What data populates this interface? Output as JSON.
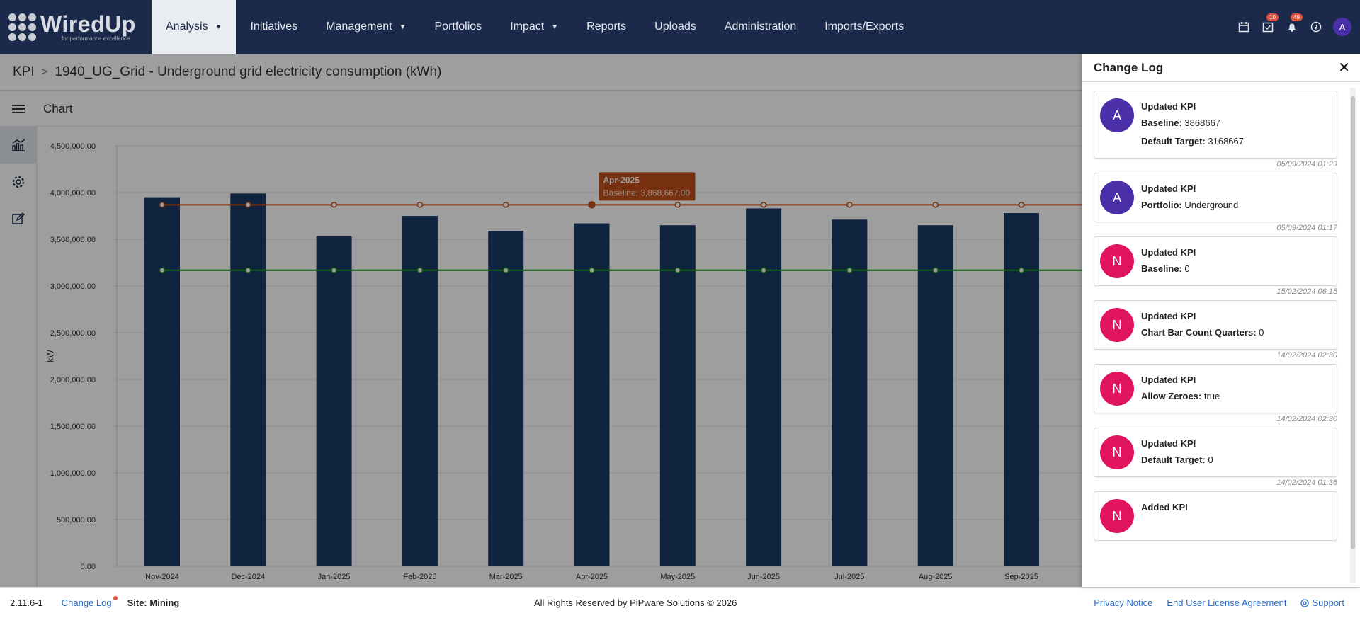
{
  "app": {
    "logo_text": "WiredUp",
    "logo_tagline": "for performance excellence"
  },
  "nav": {
    "items": [
      {
        "label": "Analysis",
        "has_caret": true,
        "active": true
      },
      {
        "label": "Initiatives"
      },
      {
        "label": "Management",
        "has_caret": true
      },
      {
        "label": "Portfolios"
      },
      {
        "label": "Impact",
        "has_caret": true
      },
      {
        "label": "Reports"
      },
      {
        "label": "Uploads"
      },
      {
        "label": "Administration"
      },
      {
        "label": "Imports/Exports"
      }
    ],
    "caret": "▼"
  },
  "top_icons": {
    "calendar": "calendar-icon",
    "tasks_badge": "10",
    "notifications_badge": "49",
    "help": "help-icon",
    "avatar_initial": "A"
  },
  "breadcrumb": {
    "root": "KPI",
    "separator": ">",
    "current": "1940_UG_Grid - Underground grid electricity consumption (kWh)"
  },
  "subheader": {
    "title": "Chart"
  },
  "chart_data": {
    "type": "bar",
    "categories": [
      "Nov-2024",
      "Dec-2024",
      "Jan-2025",
      "Feb-2025",
      "Mar-2025",
      "Apr-2025",
      "May-2025",
      "Jun-2025",
      "Jul-2025",
      "Aug-2025",
      "Sep-2025"
    ],
    "values": [
      3950000,
      3990000,
      3530000,
      3750000,
      3590000,
      3670000,
      3650000,
      3830000,
      3710000,
      3650000,
      3780000
    ],
    "series": [
      {
        "name": "Baseline",
        "type": "line",
        "values": [
          3868667,
          3868667,
          3868667,
          3868667,
          3868667,
          3868667,
          3868667,
          3868667,
          3868667,
          3868667,
          3868667
        ],
        "color": "#c0501a"
      },
      {
        "type": "line",
        "values": [
          3168667,
          3168667,
          3168667,
          3168667,
          3168667,
          3168667,
          3168667,
          3168667,
          3168667,
          3168667,
          3168667
        ],
        "color": "#1c9b1c"
      }
    ],
    "ylabel": "kW",
    "ylim": [
      0,
      4500000
    ],
    "yticks": [
      "0.00",
      "500,000.00",
      "1,000,000.00",
      "1,500,000.00",
      "2,000,000.00",
      "2,500,000.00",
      "3,000,000.00",
      "3,500,000.00",
      "4,000,000.00",
      "4,500,000.00"
    ],
    "bar_color": "#1b3a66",
    "grid": true,
    "tooltip": {
      "title": "Apr-2025",
      "text": "Baseline: 3,868,667.00",
      "index": 5
    }
  },
  "panel": {
    "title": "Change Log",
    "close": "✕",
    "entries": [
      {
        "initial": "A",
        "action": "Updated KPI",
        "fields": [
          {
            "k": "Baseline:",
            "v": " 3868667"
          },
          {
            "k": "Default Target:",
            "v": " 3168667"
          }
        ],
        "time": "05/09/2024 01:29"
      },
      {
        "initial": "A",
        "action": "Updated KPI",
        "fields": [
          {
            "k": "Portfolio:",
            "v": " Underground"
          }
        ],
        "time": "05/09/2024 01:17"
      },
      {
        "initial": "N",
        "action": "Updated KPI",
        "fields": [
          {
            "k": "Baseline:",
            "v": " 0"
          }
        ],
        "time": "15/02/2024 06:15"
      },
      {
        "initial": "N",
        "action": "Updated KPI",
        "fields": [
          {
            "k": "Chart Bar Count Quarters:",
            "v": " 0"
          }
        ],
        "time": "14/02/2024 02:30"
      },
      {
        "initial": "N",
        "action": "Updated KPI",
        "fields": [
          {
            "k": "Allow Zeroes:",
            "v": " true"
          }
        ],
        "time": "14/02/2024 02:30"
      },
      {
        "initial": "N",
        "action": "Updated KPI",
        "fields": [
          {
            "k": "Default Target:",
            "v": " 0"
          }
        ],
        "time": "14/02/2024 01:36"
      },
      {
        "initial": "N",
        "action": "Added KPI",
        "fields": [],
        "time": ""
      }
    ]
  },
  "footer": {
    "version": "2.11.6-1",
    "changelog": "Change Log",
    "site": "Site: Mining",
    "copyright": "All Rights Reserved by PiPware Solutions © 2026",
    "privacy": "Privacy Notice",
    "eula": "End User License Agreement",
    "support": "Support"
  }
}
